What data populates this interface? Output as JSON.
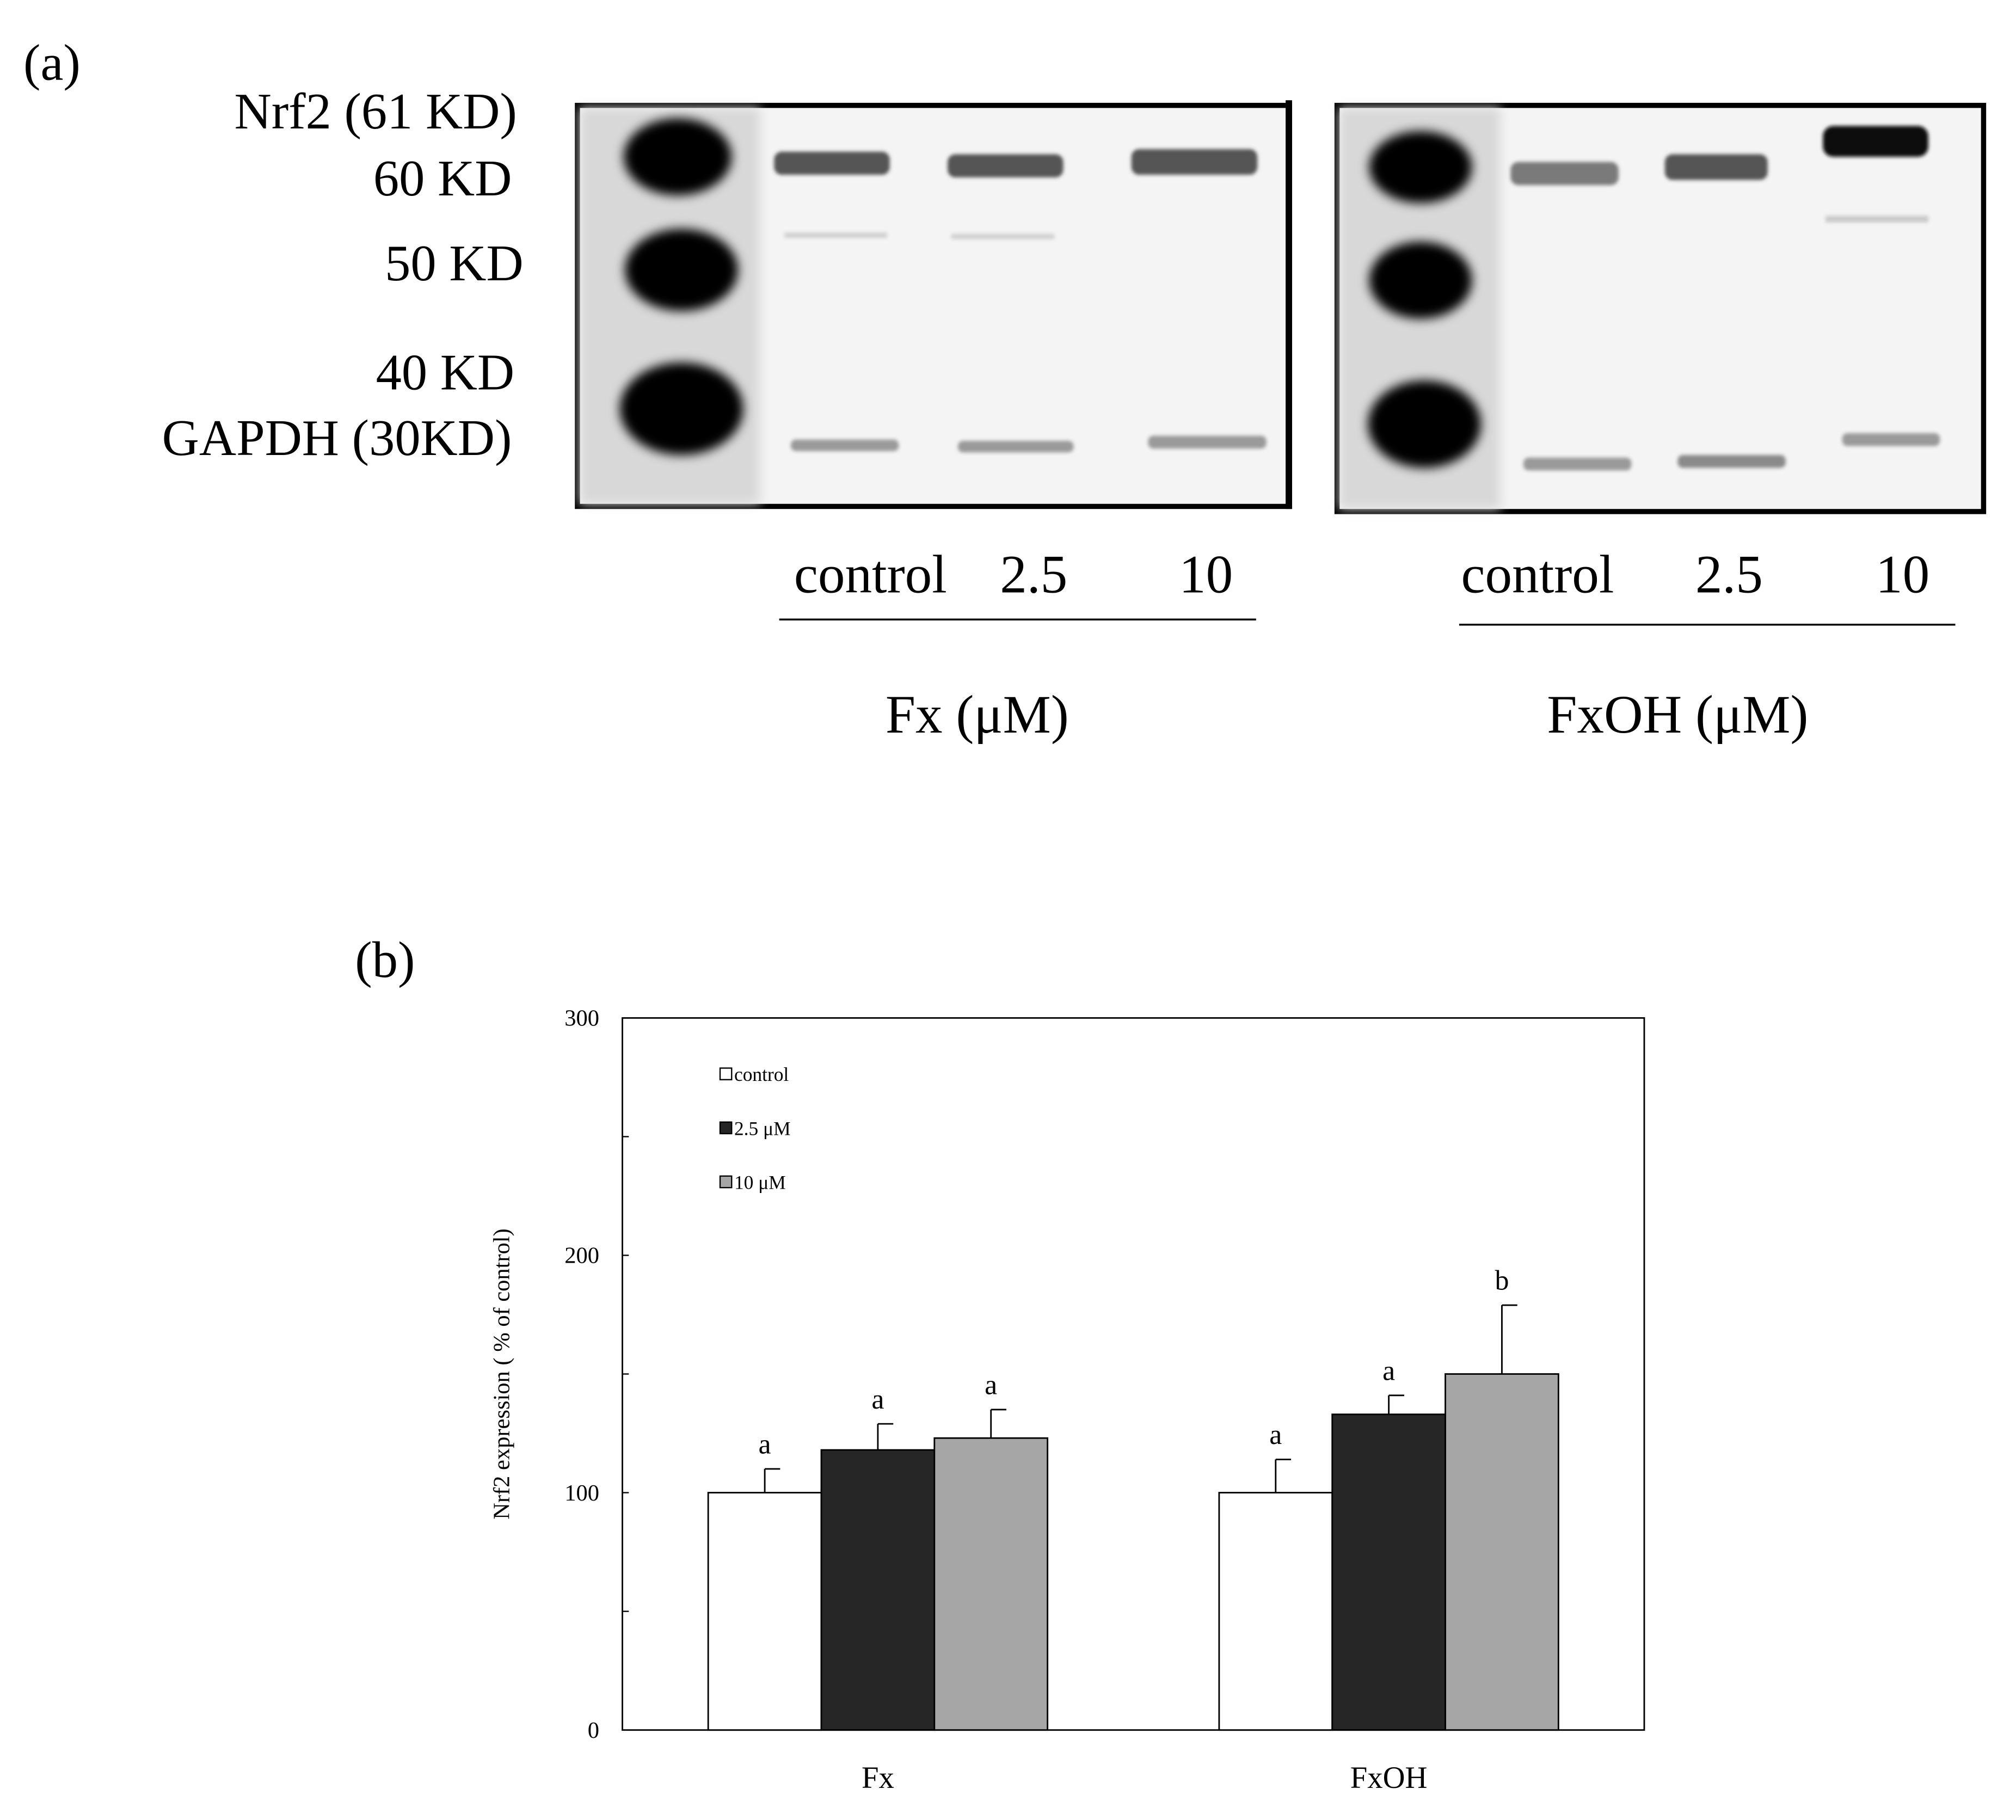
{
  "panel_a": {
    "label": "(a)",
    "markers": [
      "Nrf2 (61 KD)",
      "60 KD",
      "50 KD",
      "40 KD",
      "GAPDH (30KD)"
    ],
    "blots": [
      {
        "lanes": [
          "control",
          "2.5",
          "10"
        ],
        "treatment": "Fx (μM)"
      },
      {
        "lanes": [
          "control",
          "2.5",
          "10"
        ],
        "treatment": "FxOH (μM)"
      }
    ]
  },
  "panel_b_label": "(b)",
  "chart_data": {
    "type": "bar",
    "y_label": "Nrf2 expression ( % of control)",
    "categories": [
      "Fx",
      "FxOH"
    ],
    "series": [
      {
        "name": "control",
        "color": "#ffffff",
        "values": [
          100,
          100
        ],
        "errors": [
          10,
          14
        ],
        "significance": [
          "a",
          "a"
        ]
      },
      {
        "name": "2.5 μM",
        "color": "#262626",
        "values": [
          118,
          133
        ],
        "errors": [
          11,
          8
        ],
        "significance": [
          "a",
          "a"
        ]
      },
      {
        "name": "10 μM",
        "color": "#a6a6a6",
        "values": [
          123,
          150
        ],
        "errors": [
          12,
          29
        ],
        "significance": [
          "a",
          "b"
        ]
      }
    ],
    "ylim": [
      0,
      300
    ],
    "yticks": [
      0,
      100,
      200,
      300
    ],
    "minor_yticks": [
      50,
      150,
      250
    ],
    "grid": false,
    "legend": "upper left"
  }
}
